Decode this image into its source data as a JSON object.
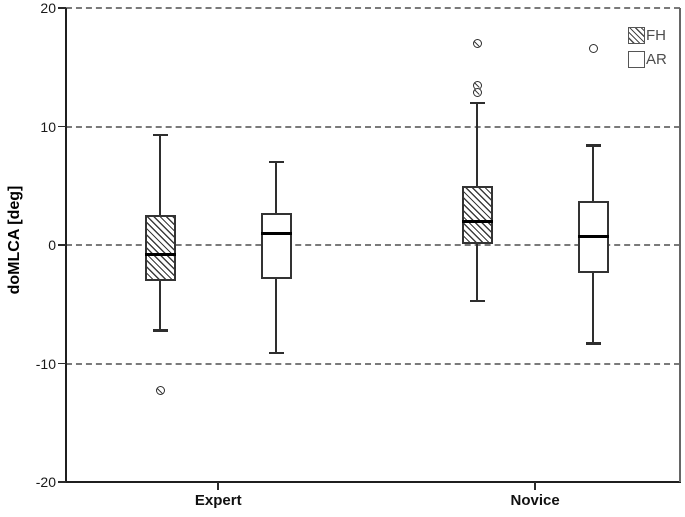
{
  "chart_data": {
    "type": "boxplot",
    "title": "",
    "ylabel": "doMLCA [deg]",
    "xlabel": "",
    "ylim": [
      -20,
      20
    ],
    "yticks": [
      20,
      10,
      0,
      -10,
      -20
    ],
    "gridline_values": [
      20,
      10,
      0,
      -10
    ],
    "grid": "dashed-horizontal",
    "categories": [
      "Expert",
      "Novice"
    ],
    "legend": {
      "position": "top-right",
      "entries": [
        {
          "label": "FH",
          "fill": "hatched"
        },
        {
          "label": "AR",
          "fill": "white"
        }
      ]
    },
    "series": [
      {
        "name": "FH",
        "fill": "hatched",
        "boxes": [
          {
            "category": "Expert",
            "whisker_low": -7.2,
            "q1": -3.0,
            "median": -0.8,
            "q3": 2.5,
            "whisker_high": 9.3,
            "outliers": [
              -12.3
            ]
          },
          {
            "category": "Novice",
            "whisker_low": -4.7,
            "q1": 0.1,
            "median": 2.0,
            "q3": 5.0,
            "whisker_high": 12.0,
            "outliers": [
              17.0,
              13.5,
              12.9
            ]
          }
        ]
      },
      {
        "name": "AR",
        "fill": "white",
        "boxes": [
          {
            "category": "Expert",
            "whisker_low": -9.1,
            "q1": -2.9,
            "median": 1.0,
            "q3": 2.7,
            "whisker_high": 7.0,
            "outliers": []
          },
          {
            "category": "Novice",
            "whisker_low": -8.3,
            "q1": -2.4,
            "median": 0.7,
            "q3": 3.7,
            "whisker_high": 8.4,
            "outliers": [
              16.6
            ]
          }
        ]
      }
    ],
    "colors": {
      "axis": "#1f1f1f",
      "grid": "#7a7a7a",
      "box_border": "#333333",
      "median": "#000000",
      "right_border": "#666666",
      "legend_text": "#4d4d4d",
      "background": "#ffffff"
    }
  }
}
